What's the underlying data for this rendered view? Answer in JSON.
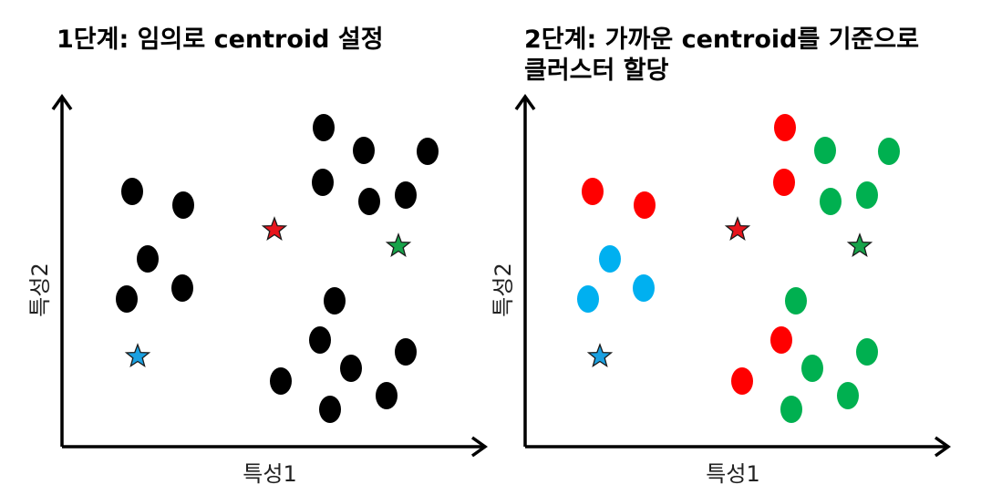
{
  "panels": [
    {
      "title": "1단계: 임의로 centroid 설정",
      "xlabel": "특성1",
      "ylabel": "특성2",
      "point_color": "#000000",
      "centroids": [
        {
          "color": "#e8141c"
        },
        {
          "color": "#16a34a"
        },
        {
          "color": "#1aa0e0"
        }
      ]
    },
    {
      "title": "2단계: 가까운 centroid를 기준으로\n클러스터 할당",
      "xlabel": "특성1",
      "ylabel": "특성2",
      "cluster_colors": {
        "red": "#ff0000",
        "green": "#00b050",
        "blue": "#00b0f0"
      },
      "centroids": [
        {
          "color": "#e8141c"
        },
        {
          "color": "#16a34a"
        },
        {
          "color": "#1aa0e0"
        }
      ]
    }
  ]
}
